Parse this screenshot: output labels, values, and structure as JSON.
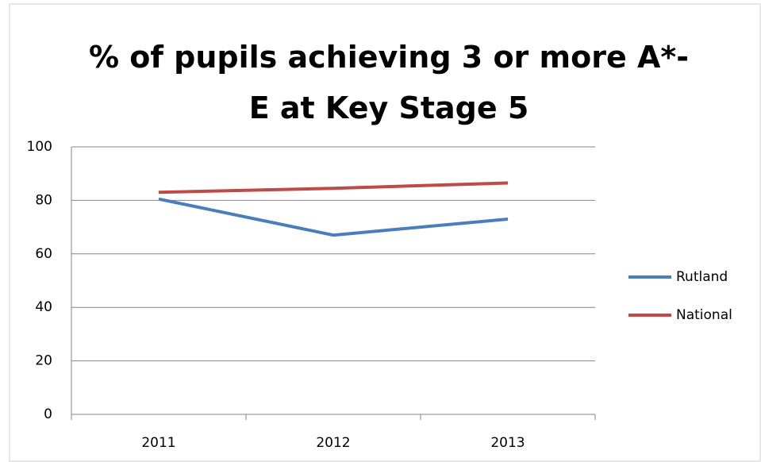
{
  "chart_data": {
    "type": "line",
    "title": "% of pupils achieving 3 or more A*-E at Key Stage 5",
    "categories": [
      "2011",
      "2012",
      "2013"
    ],
    "series": [
      {
        "name": "Rutland",
        "color": "#4a7ebb",
        "values": [
          80.5,
          67,
          73
        ]
      },
      {
        "name": "National",
        "color": "#be4b48",
        "values": [
          83,
          84.5,
          86.5
        ]
      }
    ],
    "ylim": [
      0,
      100
    ],
    "yticks": [
      0,
      20,
      40,
      60,
      80,
      100
    ],
    "grid": true,
    "legend": "right"
  }
}
